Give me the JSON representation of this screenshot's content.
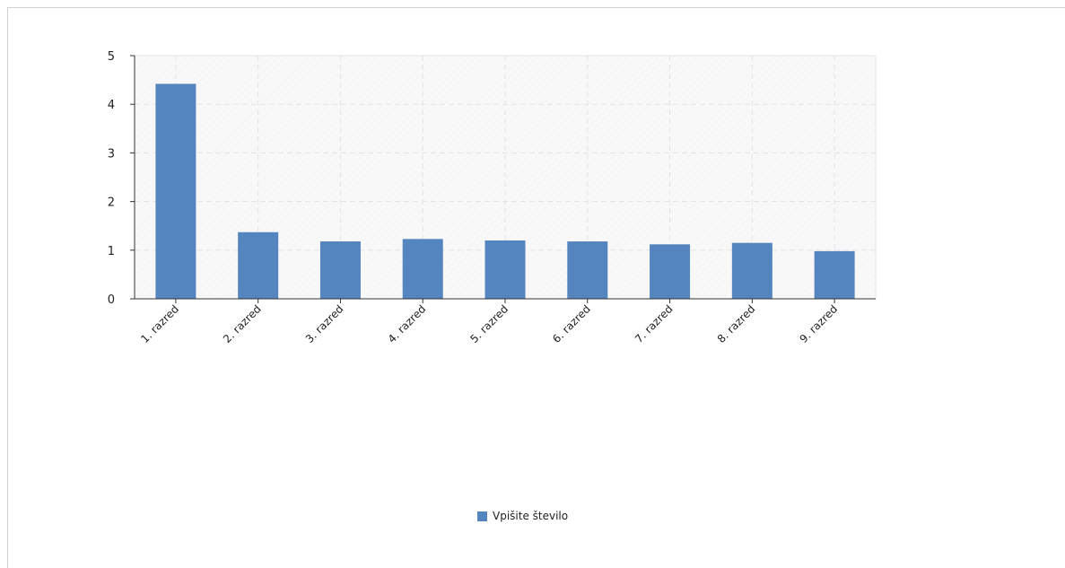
{
  "chart_data": {
    "type": "bar",
    "categories": [
      "1. razred",
      "2. razred",
      "3. razred",
      "4. razred",
      "5. razred",
      "6. razred",
      "7. razred",
      "8. razred",
      "9. razred"
    ],
    "series": [
      {
        "name": "Vpišite število",
        "values": [
          4.42,
          1.37,
          1.18,
          1.23,
          1.2,
          1.18,
          1.12,
          1.15,
          0.98
        ],
        "color": "#5585be"
      }
    ],
    "ylim": [
      0,
      5
    ],
    "yticks": [
      "0",
      "1",
      "2",
      "3",
      "4",
      "5"
    ],
    "grid": true,
    "legend_position": "bottom-center",
    "plot_background": "#f8f8f8",
    "grid_color": "#e4e4e4"
  }
}
